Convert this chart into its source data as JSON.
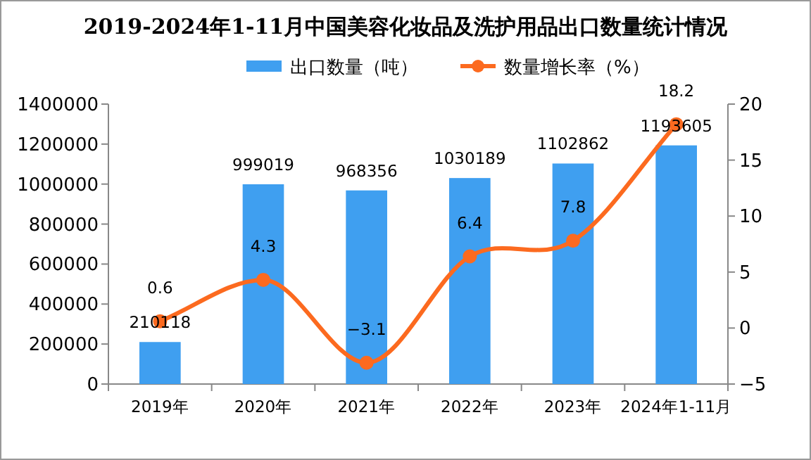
{
  "chart_data": {
    "type": "bar",
    "title": "2019-2024年1-11月中国美容化妆品及洗护用品出口数量统计情况",
    "categories": [
      "2019年",
      "2020年",
      "2021年",
      "2022年",
      "2023年",
      "2024年1-11月"
    ],
    "series": [
      {
        "name": "出口数量（吨）",
        "color": "#3f9ff0",
        "values": [
          210118,
          999019,
          968356,
          1030189,
          1102862,
          1193605
        ]
      },
      {
        "name": "数量增长率（%）",
        "type": "line",
        "axis": "y2",
        "color": "#fc6a1f",
        "marker": "circle",
        "values": [
          0.6,
          4.3,
          -3.1,
          6.4,
          7.8,
          18.2
        ]
      }
    ],
    "ylim": [
      0,
      1400000
    ],
    "yticks": [
      0,
      200000,
      400000,
      600000,
      800000,
      1000000,
      1200000,
      1400000
    ],
    "y2lim": [
      -5,
      20
    ],
    "y2ticks": [
      -5,
      0,
      5,
      10,
      15,
      20
    ],
    "data_labels": true,
    "legend": "top",
    "grid": false
  }
}
